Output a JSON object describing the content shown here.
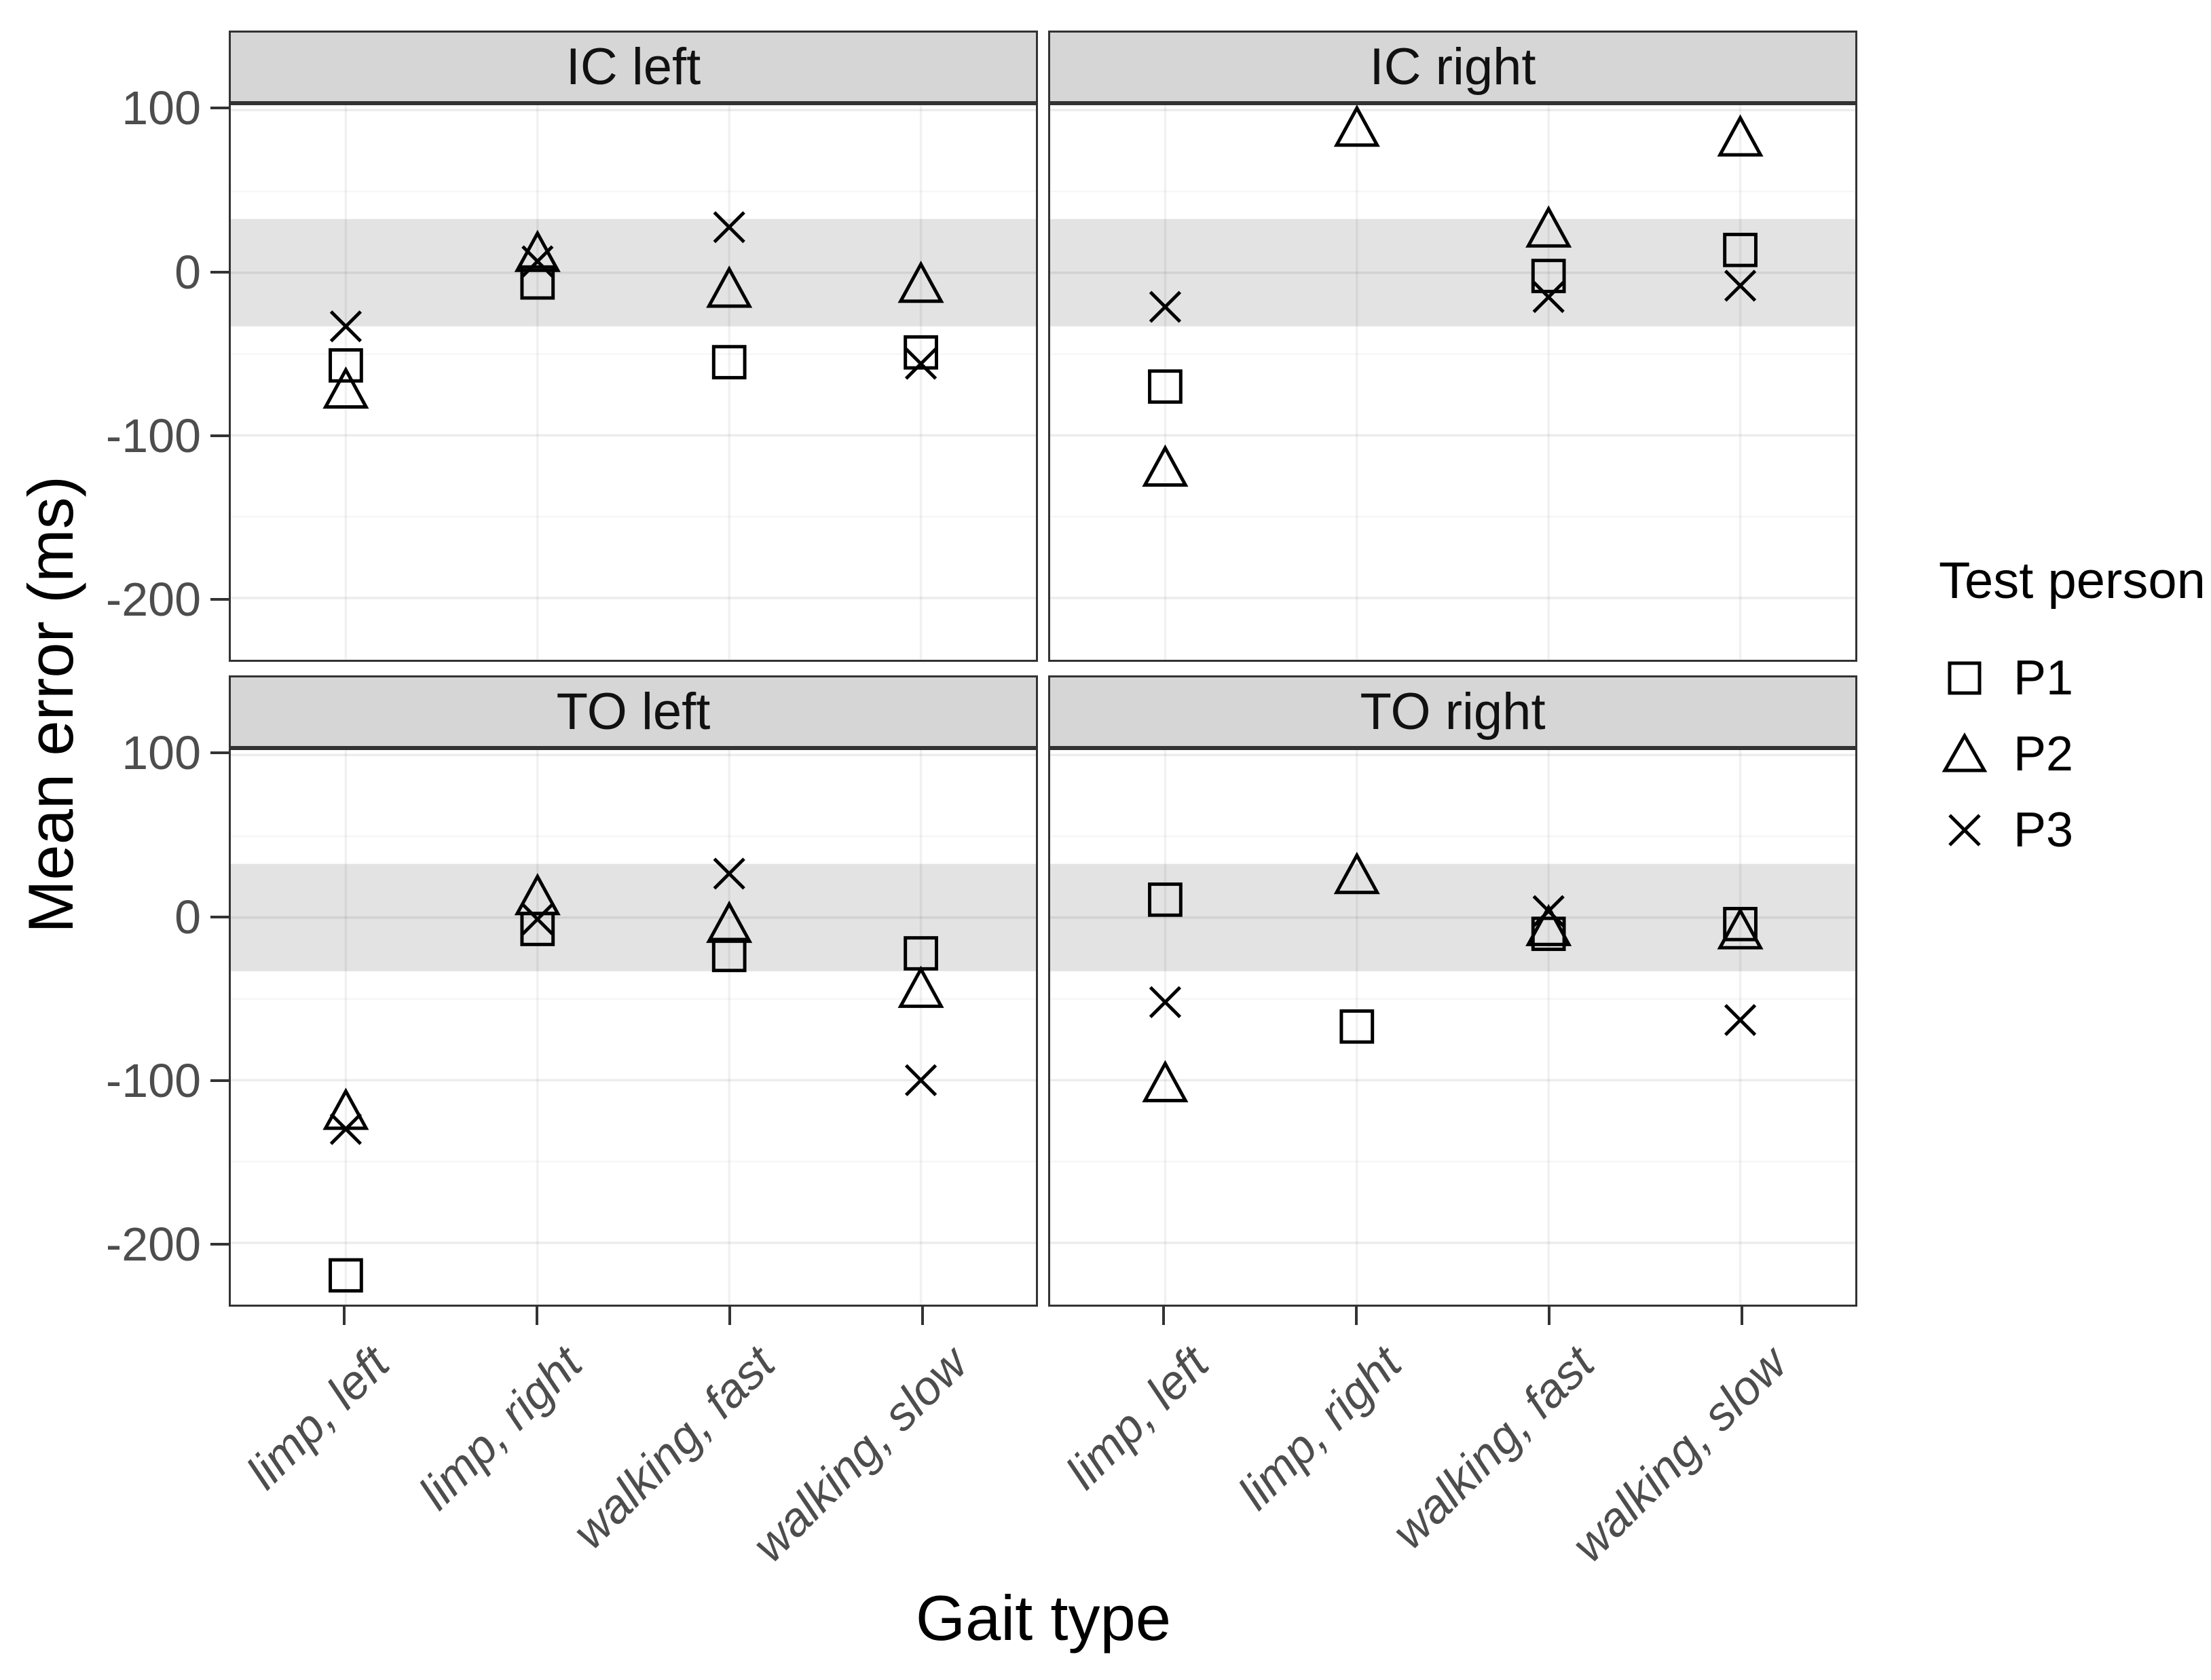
{
  "axes": {
    "y_title": "Mean error (ms)",
    "x_title": "Gait type",
    "y_tick_labels": [
      "100",
      "0",
      "-100",
      "-200"
    ]
  },
  "legend": {
    "title": "Test person",
    "entries": [
      {
        "label": "P1",
        "marker": "square"
      },
      {
        "label": "P2",
        "marker": "triangle"
      },
      {
        "label": "P3",
        "marker": "cross"
      }
    ]
  },
  "colors": {
    "reference_band": "#e3e3e3",
    "strip_background": "#d6d6d6",
    "panel_border": "#333333",
    "marker": "#000000",
    "tick_label": "#4d4d4d"
  },
  "chart_data": {
    "type": "scatter",
    "x_categories": [
      "limp, left",
      "limp, right",
      "walking, fast",
      "walking, slow"
    ],
    "xlabel": "Gait type",
    "ylabel": "Mean error (ms)",
    "y_ticks_major": [
      100,
      0,
      -100,
      -200
    ],
    "y_gridlines_minor": [
      50,
      -50,
      -150
    ],
    "ylim": [
      -238,
      103
    ],
    "reference_band": {
      "ymin": -33,
      "ymax": 33
    },
    "legend_position": "right",
    "facets": [
      {
        "label": "IC left",
        "points": [
          {
            "category": "limp, left",
            "person": "P1",
            "value": -57
          },
          {
            "category": "limp, right",
            "person": "P1",
            "value": -6
          },
          {
            "category": "walking, fast",
            "person": "P1",
            "value": -55
          },
          {
            "category": "walking, slow",
            "person": "P1",
            "value": -49
          },
          {
            "category": "limp, left",
            "person": "P2",
            "value": -73
          },
          {
            "category": "limp, right",
            "person": "P2",
            "value": 11
          },
          {
            "category": "walking, fast",
            "person": "P2",
            "value": -11
          },
          {
            "category": "walking, slow",
            "person": "P2",
            "value": -8
          },
          {
            "category": "limp, left",
            "person": "P3",
            "value": -33
          },
          {
            "category": "limp, right",
            "person": "P3",
            "value": 7
          },
          {
            "category": "walking, fast",
            "person": "P3",
            "value": 28
          },
          {
            "category": "walking, slow",
            "person": "P3",
            "value": -56
          }
        ]
      },
      {
        "label": "IC right",
        "points": [
          {
            "category": "limp, left",
            "person": "P1",
            "value": -70
          },
          {
            "category": "walking, fast",
            "person": "P1",
            "value": -2
          },
          {
            "category": "walking, slow",
            "person": "P1",
            "value": 14
          },
          {
            "category": "limp, left",
            "person": "P2",
            "value": -121
          },
          {
            "category": "limp, right",
            "person": "P2",
            "value": 88
          },
          {
            "category": "walking, fast",
            "person": "P2",
            "value": 26
          },
          {
            "category": "walking, slow",
            "person": "P2",
            "value": 82
          },
          {
            "category": "limp, left",
            "person": "P3",
            "value": -21
          },
          {
            "category": "walking, fast",
            "person": "P3",
            "value": -15
          },
          {
            "category": "walking, slow",
            "person": "P3",
            "value": -8
          }
        ]
      },
      {
        "label": "TO left",
        "points": [
          {
            "category": "limp, left",
            "person": "P1",
            "value": -220
          },
          {
            "category": "limp, right",
            "person": "P1",
            "value": -7
          },
          {
            "category": "walking, fast",
            "person": "P1",
            "value": -23
          },
          {
            "category": "walking, slow",
            "person": "P1",
            "value": -22
          },
          {
            "category": "limp, left",
            "person": "P2",
            "value": -120
          },
          {
            "category": "limp, right",
            "person": "P2",
            "value": 12
          },
          {
            "category": "walking, fast",
            "person": "P2",
            "value": -5
          },
          {
            "category": "walking, slow",
            "person": "P2",
            "value": -45
          },
          {
            "category": "limp, left",
            "person": "P3",
            "value": -130
          },
          {
            "category": "limp, right",
            "person": "P3",
            "value": -1
          },
          {
            "category": "walking, fast",
            "person": "P3",
            "value": 27
          },
          {
            "category": "walking, slow",
            "person": "P3",
            "value": -100
          }
        ]
      },
      {
        "label": "TO right",
        "points": [
          {
            "category": "limp, left",
            "person": "P1",
            "value": 11
          },
          {
            "category": "limp, right",
            "person": "P1",
            "value": -67
          },
          {
            "category": "walking, fast",
            "person": "P1",
            "value": -10
          },
          {
            "category": "walking, slow",
            "person": "P1",
            "value": -4
          },
          {
            "category": "limp, left",
            "person": "P2",
            "value": -103
          },
          {
            "category": "limp, right",
            "person": "P2",
            "value": 25
          },
          {
            "category": "walking, fast",
            "person": "P2",
            "value": -7
          },
          {
            "category": "walking, slow",
            "person": "P2",
            "value": -9
          },
          {
            "category": "limp, left",
            "person": "P3",
            "value": -52
          },
          {
            "category": "walking, fast",
            "person": "P3",
            "value": 4
          },
          {
            "category": "walking, slow",
            "person": "P3",
            "value": -63
          }
        ]
      }
    ]
  }
}
